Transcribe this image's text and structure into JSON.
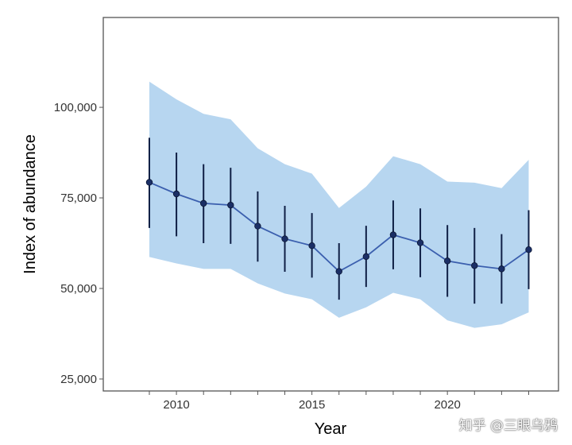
{
  "chart_data": {
    "type": "line",
    "title": "",
    "xlabel": "Year",
    "ylabel": "Index of abundance",
    "xlim": [
      2007.3,
      2024.1
    ],
    "ylim": [
      21700,
      124800
    ],
    "x_ticks": [
      2010,
      2015,
      2020
    ],
    "x_tick_labels": [
      "2010",
      "2015",
      "2020"
    ],
    "y_ticks": [
      25000,
      50000,
      75000,
      100000
    ],
    "y_tick_labels": [
      "25,000",
      "50,000",
      "75,000",
      "100,000"
    ],
    "grid": false,
    "x": [
      2009,
      2010,
      2011,
      2012,
      2013,
      2014,
      2015,
      2016,
      2017,
      2018,
      2019,
      2020,
      2021,
      2022,
      2023
    ],
    "series": [
      {
        "values": [
          79300,
          76100,
          73500,
          73000,
          67200,
          63700,
          61800,
          54700,
          58800,
          64800,
          62600,
          57600,
          56300,
          55400,
          60700
        ],
        "error_upper": [
          91600,
          87500,
          84300,
          83300,
          76800,
          72800,
          70800,
          62500,
          67300,
          74300,
          72100,
          67500,
          66700,
          65000,
          71600
        ],
        "error_lower": [
          66700,
          64400,
          62500,
          62300,
          57400,
          54600,
          53000,
          46900,
          50400,
          55300,
          53100,
          47700,
          45800,
          45800,
          49800
        ],
        "ribbon_upper": [
          107100,
          102200,
          98200,
          96700,
          88700,
          84300,
          81700,
          72200,
          78100,
          86500,
          84300,
          79500,
          79200,
          77700,
          85500
        ],
        "ribbon_lower": [
          58700,
          56900,
          55400,
          55400,
          51400,
          48600,
          47000,
          41900,
          44800,
          48800,
          47000,
          41200,
          39100,
          40100,
          43400
        ]
      }
    ],
    "colors": {
      "ribbon": "#b7d6f0",
      "line": "#3b5fae",
      "error_bar": "#0f1f45",
      "point": "#1b2f66",
      "axis": "#555555"
    }
  },
  "watermark": "知乎 @三眼乌鸦"
}
